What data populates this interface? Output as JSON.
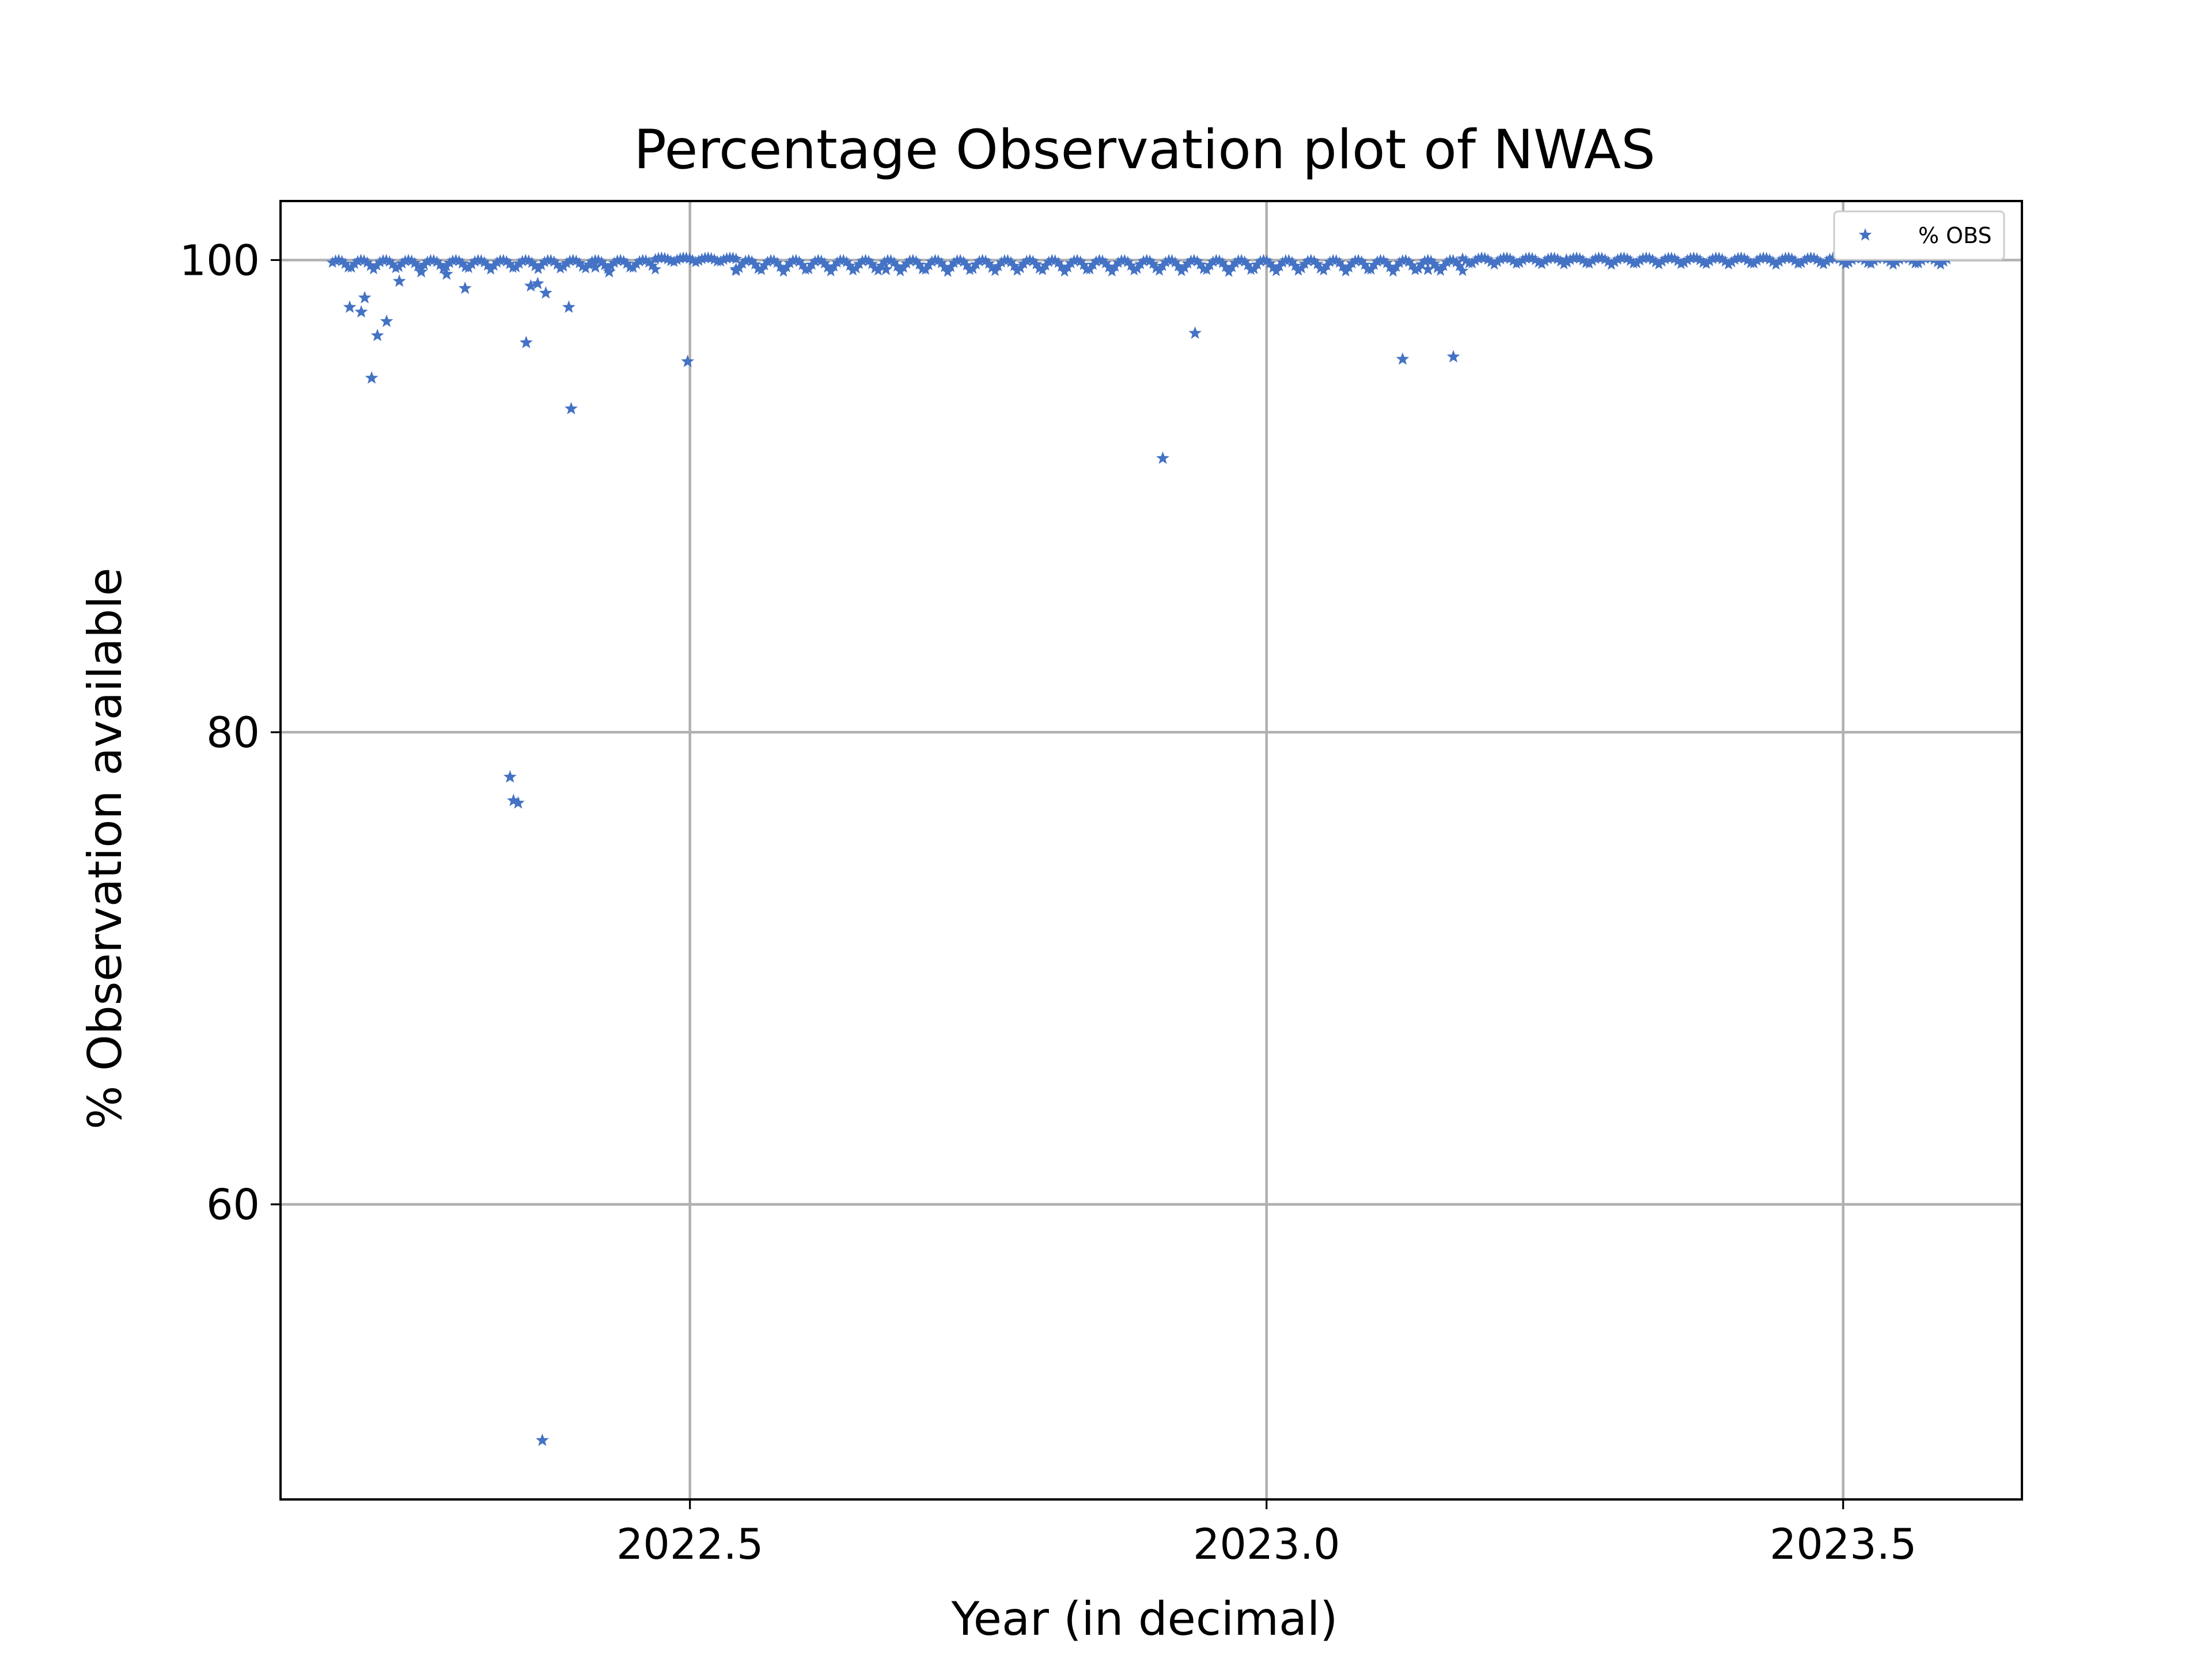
{
  "chart_data": {
    "type": "scatter",
    "title": "Percentage Observation plot of NWAS",
    "xlabel": "Year (in decimal)",
    "ylabel": "% Observation available",
    "xlim": [
      2022.145,
      2023.655
    ],
    "ylim": [
      47.5,
      102.5
    ],
    "xticks": [
      2022.5,
      2023.0,
      2023.5
    ],
    "xtick_labels": [
      "2022.5",
      "2023.0",
      "2023.5"
    ],
    "yticks": [
      60,
      80,
      100
    ],
    "ytick_labels": [
      "60",
      "80",
      "100"
    ],
    "grid": true,
    "legend_position": "upper right",
    "marker": "star",
    "color": "#4472c4",
    "series": [
      {
        "name": "% OBS",
        "baseline": {
          "segments": [
            {
              "x_start": 2022.19,
              "x_end": 2022.47,
              "y_low": 99.6,
              "y_high": 100.0
            },
            {
              "x_start": 2022.47,
              "x_end": 2022.54,
              "y_low": 99.9,
              "y_high": 100.1
            },
            {
              "x_start": 2022.54,
              "x_end": 2023.17,
              "y_low": 99.5,
              "y_high": 100.0
            },
            {
              "x_start": 2023.17,
              "x_end": 2023.59,
              "y_low": 99.8,
              "y_high": 100.1
            }
          ]
        },
        "outliers": [
          {
            "x": 2022.205,
            "y": 98.0
          },
          {
            "x": 2022.215,
            "y": 97.8
          },
          {
            "x": 2022.218,
            "y": 98.4
          },
          {
            "x": 2022.224,
            "y": 95.0
          },
          {
            "x": 2022.229,
            "y": 96.8
          },
          {
            "x": 2022.237,
            "y": 97.4
          },
          {
            "x": 2022.248,
            "y": 99.1
          },
          {
            "x": 2022.267,
            "y": 99.5
          },
          {
            "x": 2022.289,
            "y": 99.4
          },
          {
            "x": 2022.305,
            "y": 98.8
          },
          {
            "x": 2022.344,
            "y": 78.1
          },
          {
            "x": 2022.347,
            "y": 77.1
          },
          {
            "x": 2022.351,
            "y": 77.0
          },
          {
            "x": 2022.358,
            "y": 96.5
          },
          {
            "x": 2022.362,
            "y": 98.9
          },
          {
            "x": 2022.368,
            "y": 99.0
          },
          {
            "x": 2022.372,
            "y": 50.0
          },
          {
            "x": 2022.375,
            "y": 98.6
          },
          {
            "x": 2022.395,
            "y": 98.0
          },
          {
            "x": 2022.397,
            "y": 93.7
          },
          {
            "x": 2022.418,
            "y": 99.7
          },
          {
            "x": 2022.43,
            "y": 99.5
          },
          {
            "x": 2022.498,
            "y": 95.7
          },
          {
            "x": 2022.54,
            "y": 99.6
          },
          {
            "x": 2022.67,
            "y": 99.6
          },
          {
            "x": 2022.91,
            "y": 91.6
          },
          {
            "x": 2022.938,
            "y": 96.9
          },
          {
            "x": 2023.118,
            "y": 95.8
          },
          {
            "x": 2023.162,
            "y": 95.9
          },
          {
            "x": 2023.14,
            "y": 99.6
          },
          {
            "x": 2023.26,
            "y": 100.0
          }
        ]
      }
    ]
  }
}
